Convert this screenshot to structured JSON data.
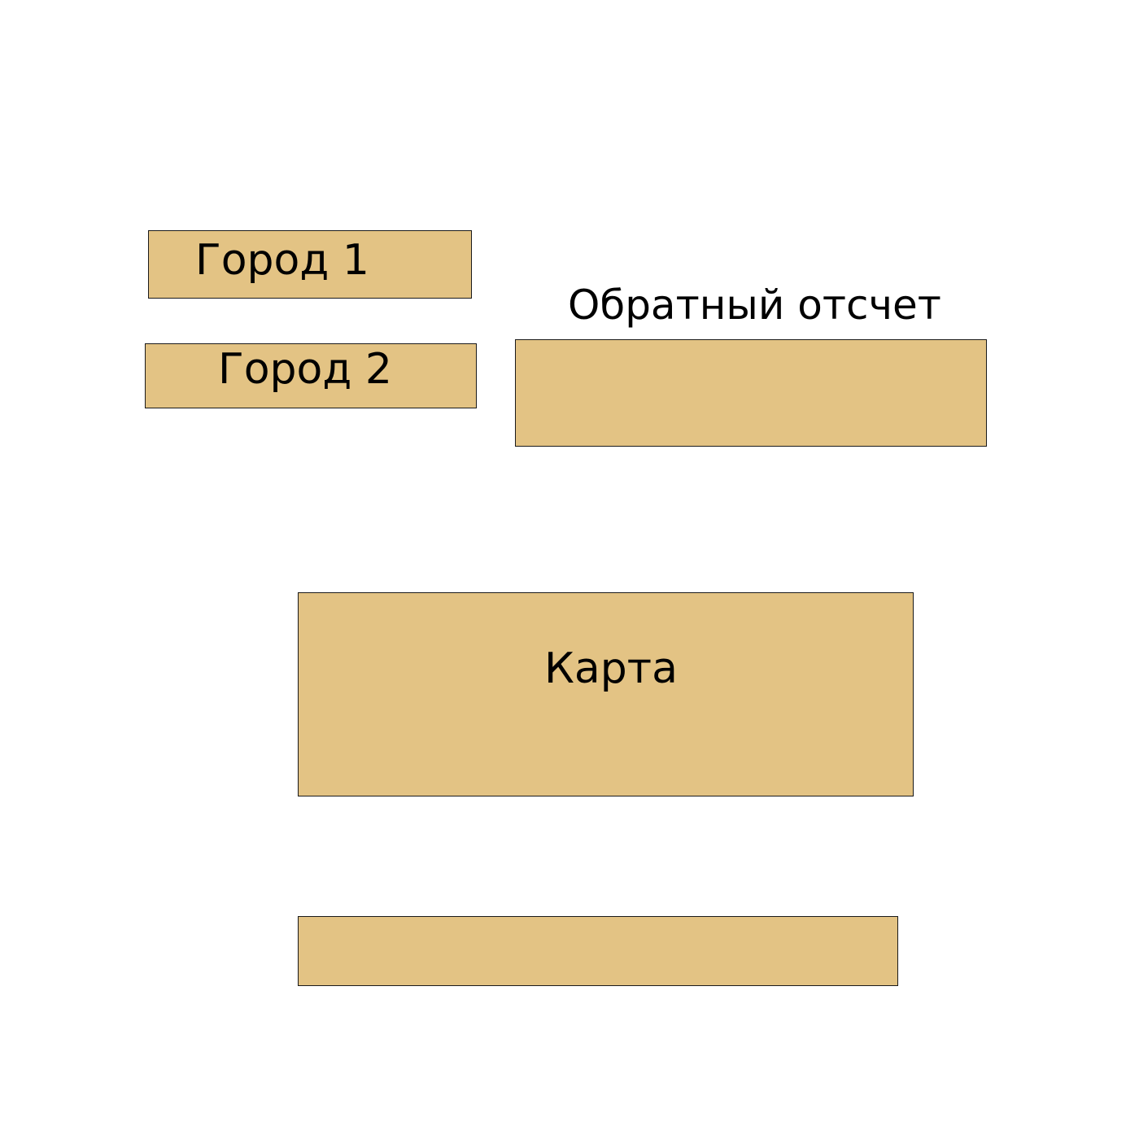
{
  "colors": {
    "box_fill": "#e3c384",
    "box_border": "#1a1a1a",
    "background": "#ffffff",
    "text": "#000000"
  },
  "city1": {
    "label": "Город 1"
  },
  "city2": {
    "label": "Город 2"
  },
  "countdown": {
    "title": "Обратный отсчет",
    "value": ""
  },
  "map": {
    "label": "Карта"
  },
  "bottom_bar": {
    "value": ""
  }
}
